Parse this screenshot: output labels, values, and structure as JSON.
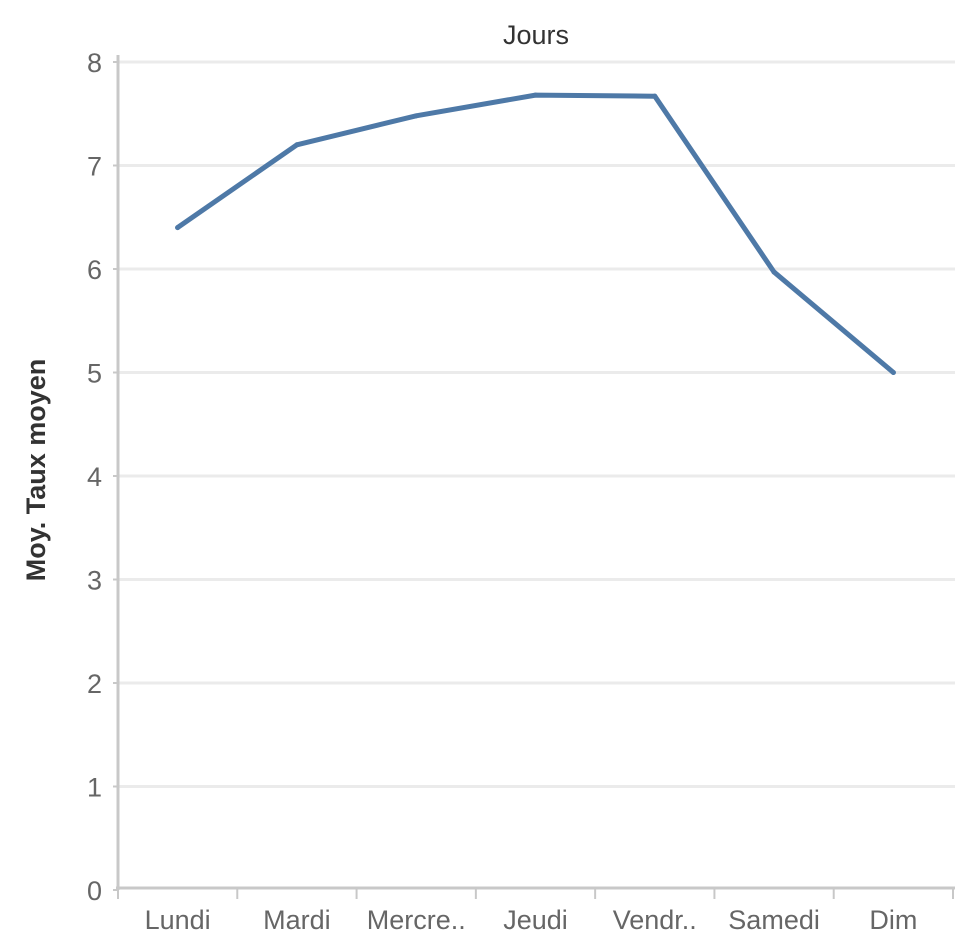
{
  "chart_data": {
    "type": "line",
    "title": "",
    "xlabel": "Jours",
    "ylabel": "Moy. Taux moyen",
    "categories": [
      "Lundi",
      "Mardi",
      "Mercre..",
      "Jeudi",
      "Vendr..",
      "Samedi",
      "Dim"
    ],
    "series": [
      {
        "values": [
          6.4,
          7.2,
          7.48,
          7.68,
          7.67,
          5.97,
          5.0
        ]
      }
    ],
    "yticks": [
      "0",
      "1",
      "2",
      "3",
      "4",
      "5",
      "6",
      "7",
      "8"
    ],
    "ylim": [
      0,
      8
    ],
    "grid": true,
    "line_color": "#4e79a7"
  }
}
